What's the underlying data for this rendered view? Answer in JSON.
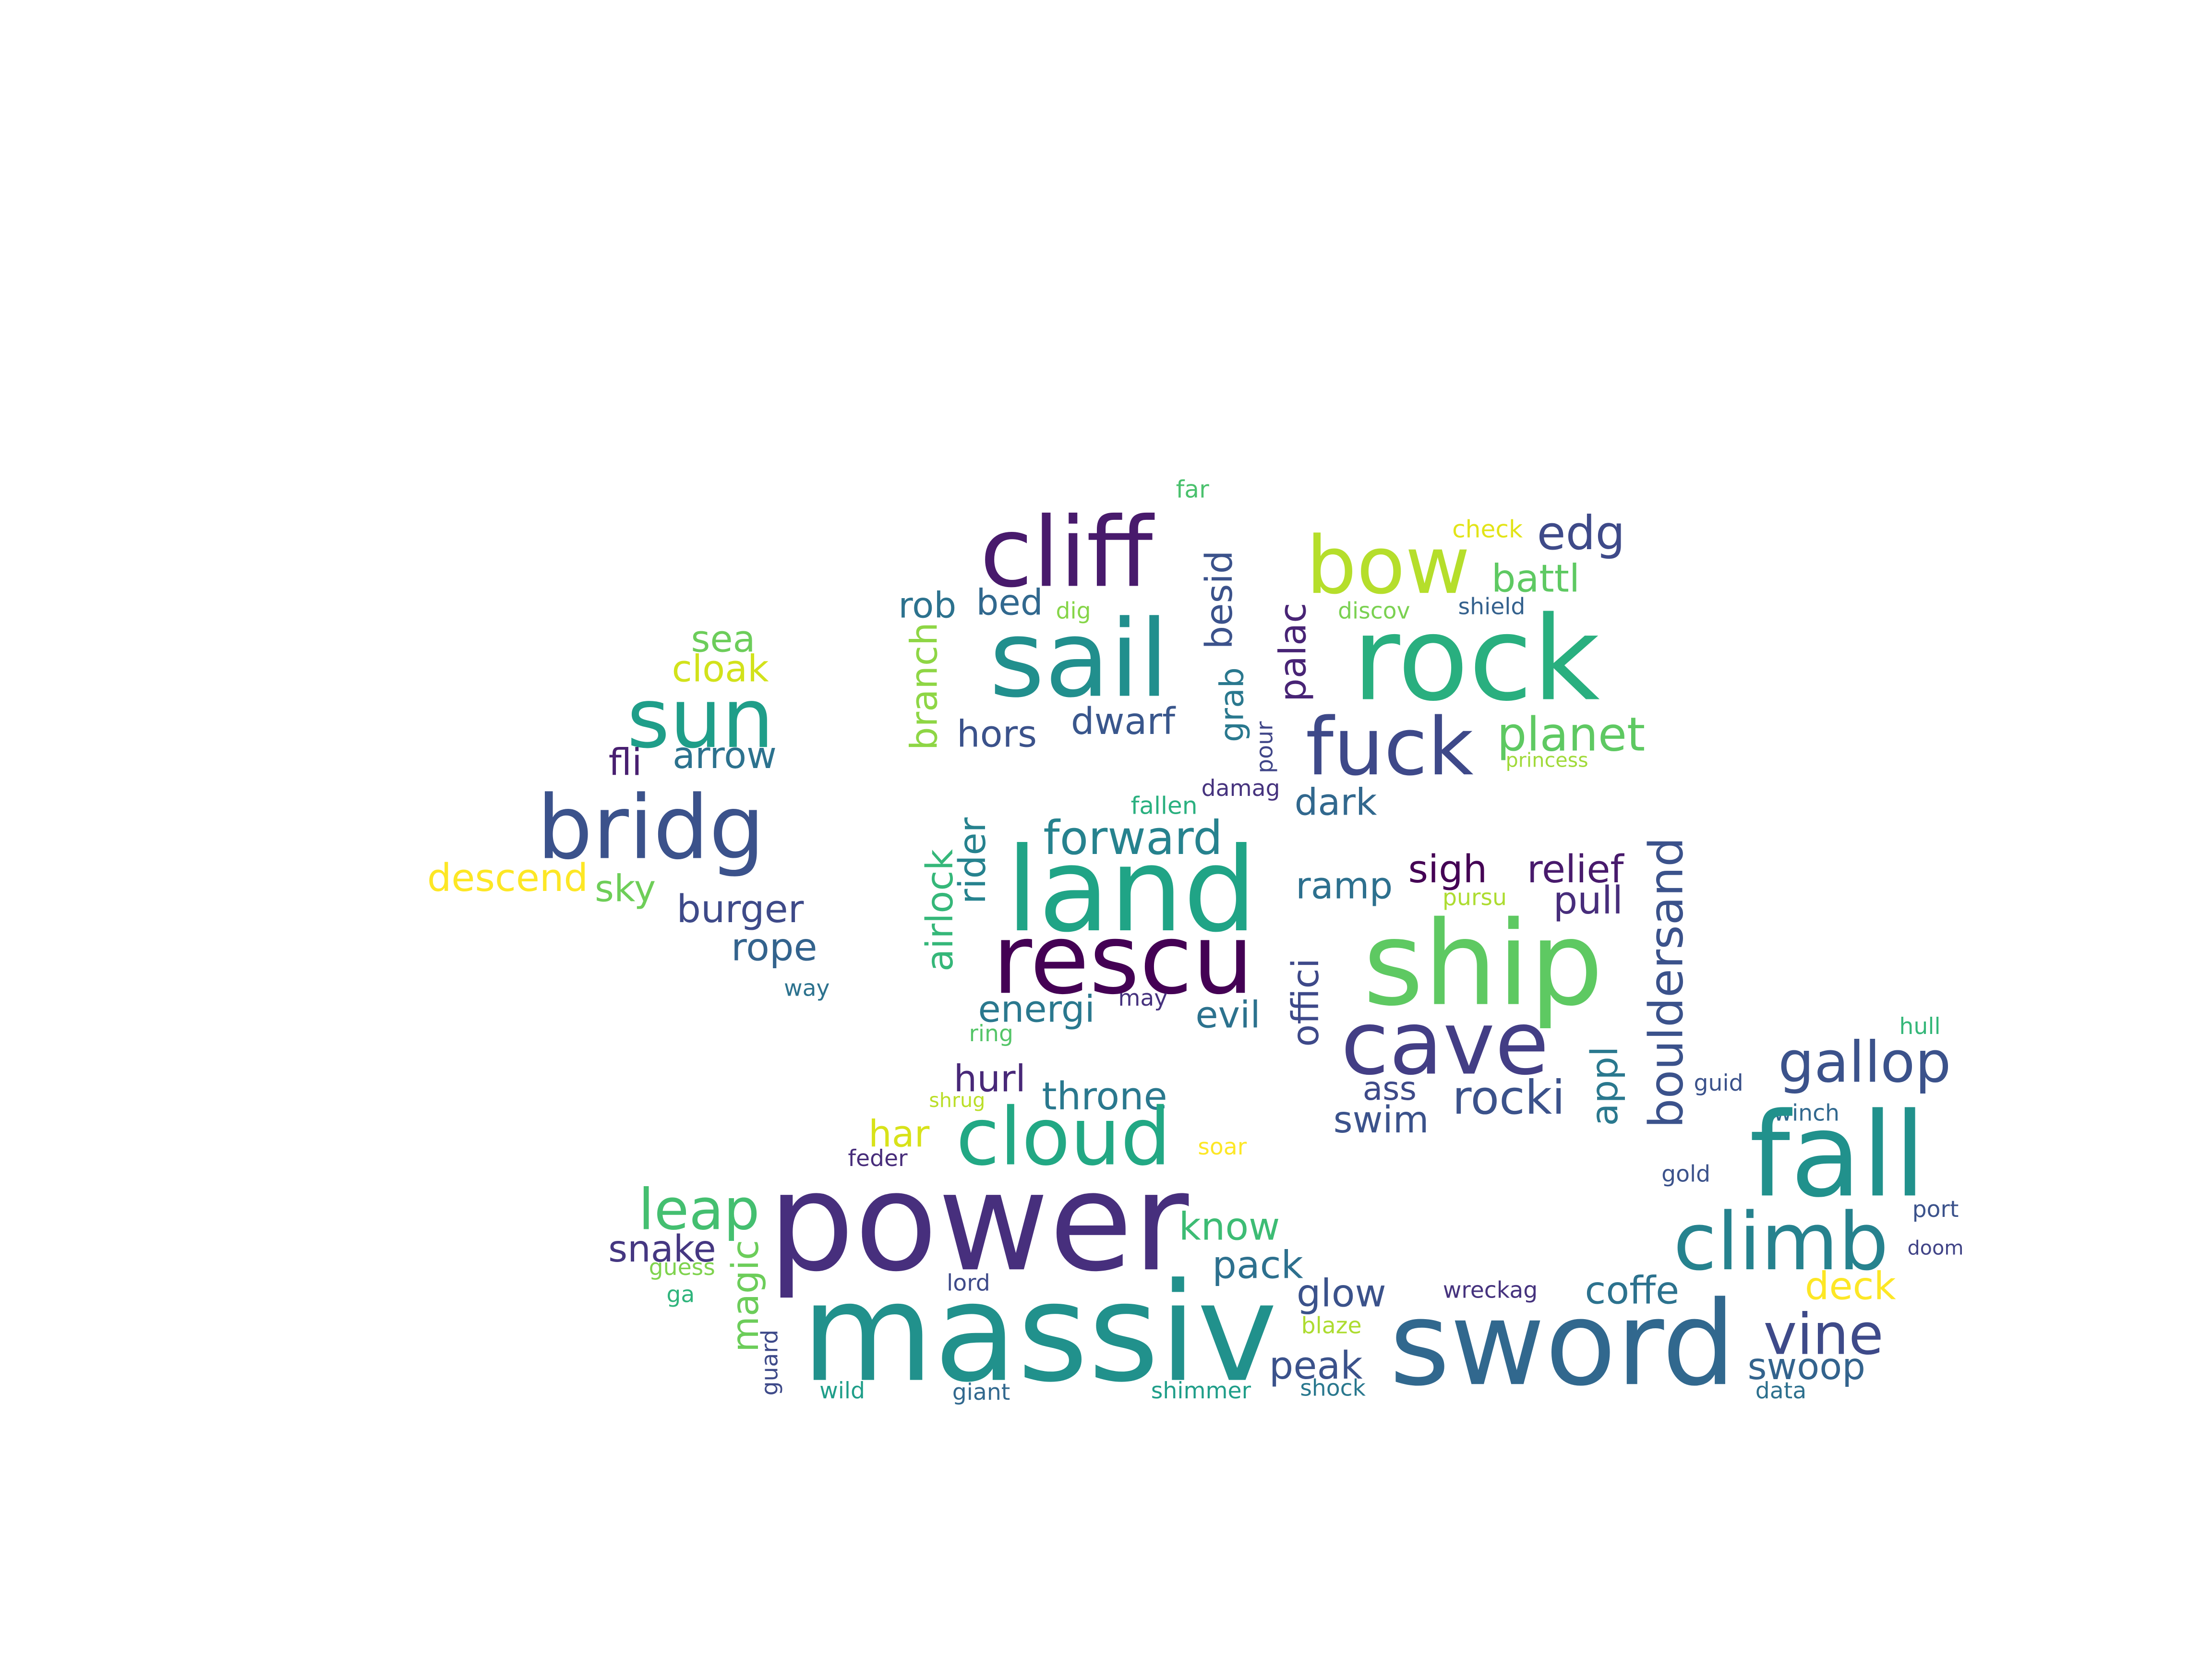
{
  "words": [
    {
      "text": "far",
      "color": "#4ac16d"
    },
    {
      "text": "check",
      "color": "#e2e418"
    },
    {
      "text": "edg",
      "color": "#3e4a89"
    },
    {
      "text": "cliff",
      "color": "#481a6c"
    },
    {
      "text": "bow",
      "color": "#b5de2b"
    },
    {
      "text": "battl",
      "color": "#5ec962"
    },
    {
      "text": "rob",
      "color": "#2c728e"
    },
    {
      "text": "bed",
      "color": "#31688e"
    },
    {
      "text": "dig",
      "color": "#86d549"
    },
    {
      "text": "besid",
      "color": "#3b528b"
    },
    {
      "text": "discov",
      "color": "#7ad151"
    },
    {
      "text": "shield",
      "color": "#34618d"
    },
    {
      "text": "sea",
      "color": "#6ccd5a"
    },
    {
      "text": "sail",
      "color": "#218f8d"
    },
    {
      "text": "rock",
      "color": "#29af7f"
    },
    {
      "text": "cloak",
      "color": "#d2e21b"
    },
    {
      "text": "palac",
      "color": "#482475"
    },
    {
      "text": "branch",
      "color": "#8ed645"
    },
    {
      "text": "sun",
      "color": "#1f9e89"
    },
    {
      "text": "grab",
      "color": "#2a788e"
    },
    {
      "text": "hors",
      "color": "#3b528b"
    },
    {
      "text": "dwarf",
      "color": "#39568c"
    },
    {
      "text": "pour",
      "color": "#404688"
    },
    {
      "text": "fuck",
      "color": "#3e4989"
    },
    {
      "text": "planet",
      "color": "#5ec962"
    },
    {
      "text": "fli",
      "color": "#481f70"
    },
    {
      "text": "arrow",
      "color": "#2c728e"
    },
    {
      "text": "princess",
      "color": "#a0da39"
    },
    {
      "text": "damag",
      "color": "#46337e"
    },
    {
      "text": "fallen",
      "color": "#2ab07f"
    },
    {
      "text": "bridg",
      "color": "#3b528b"
    },
    {
      "text": "dark",
      "color": "#31688e"
    },
    {
      "text": "airlock",
      "color": "#35b779"
    },
    {
      "text": "rider",
      "color": "#26828e"
    },
    {
      "text": "forward",
      "color": "#26828e"
    },
    {
      "text": "descend",
      "color": "#fde725"
    },
    {
      "text": "ramp",
      "color": "#2d708e"
    },
    {
      "text": "sigh",
      "color": "#440154"
    },
    {
      "text": "relief",
      "color": "#481a6c"
    },
    {
      "text": "bouldersand",
      "color": "#3b528b"
    },
    {
      "text": "land",
      "color": "#20a486"
    },
    {
      "text": "sky",
      "color": "#6ece58"
    },
    {
      "text": "pursu",
      "color": "#addc30"
    },
    {
      "text": "pull",
      "color": "#472d7b"
    },
    {
      "text": "burger",
      "color": "#3e4a89"
    },
    {
      "text": "ship",
      "color": "#5ec962"
    },
    {
      "text": "rope",
      "color": "#33638d"
    },
    {
      "text": "rescu",
      "color": "#440154"
    },
    {
      "text": "way",
      "color": "#2c728e"
    },
    {
      "text": "offici",
      "color": "#3e4989"
    },
    {
      "text": "may",
      "color": "#46327e"
    },
    {
      "text": "energi",
      "color": "#2a788e"
    },
    {
      "text": "evil",
      "color": "#2c728e"
    },
    {
      "text": "hull",
      "color": "#35b779"
    },
    {
      "text": "ring",
      "color": "#54c568"
    },
    {
      "text": "cave",
      "color": "#433e85"
    },
    {
      "text": "appl",
      "color": "#2a788e"
    },
    {
      "text": "gallop",
      "color": "#3b528b"
    },
    {
      "text": "hurl",
      "color": "#482878"
    },
    {
      "text": "ass",
      "color": "#3e4a89"
    },
    {
      "text": "guid",
      "color": "#3b528b"
    },
    {
      "text": "shrug",
      "color": "#bade28"
    },
    {
      "text": "throne",
      "color": "#2a788e"
    },
    {
      "text": "swim",
      "color": "#3b528b"
    },
    {
      "text": "rocki",
      "color": "#3b528b"
    },
    {
      "text": "winch",
      "color": "#31688e"
    },
    {
      "text": "har",
      "color": "#d8e219"
    },
    {
      "text": "cloud",
      "color": "#22a884"
    },
    {
      "text": "soar",
      "color": "#fde725"
    },
    {
      "text": "fall",
      "color": "#21918c"
    },
    {
      "text": "feder",
      "color": "#472c7a"
    },
    {
      "text": "gold",
      "color": "#3b528b"
    },
    {
      "text": "leap",
      "color": "#44bf70"
    },
    {
      "text": "power",
      "color": "#472f7d"
    },
    {
      "text": "know",
      "color": "#3dbc74"
    },
    {
      "text": "climb",
      "color": "#26828e"
    },
    {
      "text": "port",
      "color": "#3b528b"
    },
    {
      "text": "snake",
      "color": "#453781"
    },
    {
      "text": "guess",
      "color": "#7fd34e"
    },
    {
      "text": "doom",
      "color": "#414487"
    },
    {
      "text": "pack",
      "color": "#2d708e"
    },
    {
      "text": "magic",
      "color": "#6ccd5a"
    },
    {
      "text": "lord",
      "color": "#3e4a89"
    },
    {
      "text": "ga",
      "color": "#2fb47c"
    },
    {
      "text": "glow",
      "color": "#3b528b"
    },
    {
      "text": "wreckag",
      "color": "#46337e"
    },
    {
      "text": "coffe",
      "color": "#2c728e"
    },
    {
      "text": "deck",
      "color": "#fde725"
    },
    {
      "text": "massiv",
      "color": "#21918c"
    },
    {
      "text": "blaze",
      "color": "#addc30"
    },
    {
      "text": "sword",
      "color": "#31688e"
    },
    {
      "text": "vine",
      "color": "#3e4a89"
    },
    {
      "text": "guard",
      "color": "#3e4a89"
    },
    {
      "text": "peak",
      "color": "#3b528b"
    },
    {
      "text": "swoop",
      "color": "#33638d"
    },
    {
      "text": "wild",
      "color": "#1f9e89"
    },
    {
      "text": "giant",
      "color": "#31688e"
    },
    {
      "text": "shimmer",
      "color": "#1f9e89"
    },
    {
      "text": "shock",
      "color": "#2a788e"
    },
    {
      "text": "data",
      "color": "#2d708e"
    }
  ]
}
